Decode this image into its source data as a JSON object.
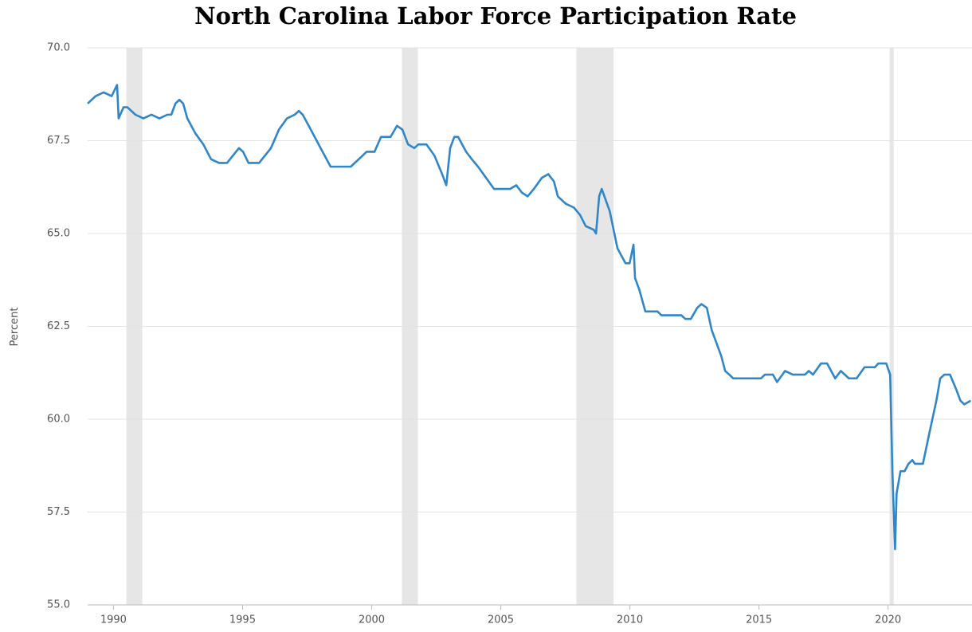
{
  "chart_data": {
    "type": "line",
    "title": "North Carolina Labor Force Participation Rate",
    "y_label": "Percent",
    "xlim": [
      1989,
      2023.25
    ],
    "ylim": [
      55,
      70
    ],
    "xticks": [
      1990,
      1995,
      2000,
      2005,
      2010,
      2015,
      2020
    ],
    "yticks": [
      {
        "value": 55,
        "label": "55.0"
      },
      {
        "value": 57.5,
        "label": "57.5"
      },
      {
        "value": 60,
        "label": "60.0"
      },
      {
        "value": 62.5,
        "label": "62.5"
      },
      {
        "value": 65,
        "label": "65.0"
      },
      {
        "value": 67.5,
        "label": "67.5"
      },
      {
        "value": 70,
        "label": "70.0"
      }
    ],
    "grid": true,
    "recessions": [
      {
        "start": 1990.5,
        "end": 1991.12
      },
      {
        "start": 2001.17,
        "end": 2001.79
      },
      {
        "start": 2007.93,
        "end": 2009.37
      },
      {
        "start": 2020.06,
        "end": 2020.22
      }
    ],
    "recession_color": "#e6e6e6",
    "series": [
      {
        "name": "North Carolina",
        "color": "#2f86c8",
        "x": [
          1989.0,
          1989.31,
          1989.62,
          1989.93,
          1990.14,
          1990.2,
          1990.39,
          1990.54,
          1990.85,
          1991.16,
          1991.47,
          1991.78,
          1992.09,
          1992.24,
          1992.4,
          1992.55,
          1992.7,
          1992.86,
          1993.17,
          1993.48,
          1993.78,
          1994.09,
          1994.4,
          1994.86,
          1995.02,
          1995.23,
          1995.64,
          1996.1,
          1996.41,
          1996.72,
          1997.02,
          1997.18,
          1997.33,
          1997.64,
          1998.1,
          1998.41,
          1999.19,
          1999.65,
          1999.8,
          2000.11,
          2000.36,
          2000.73,
          2000.98,
          2001.19,
          2001.41,
          2001.65,
          2001.81,
          2002.12,
          2002.43,
          2002.73,
          2002.89,
          2003.04,
          2003.2,
          2003.35,
          2003.66,
          2003.88,
          2004.12,
          2004.43,
          2004.74,
          2004.99,
          2005.36,
          2005.6,
          2005.82,
          2006.04,
          2006.28,
          2006.59,
          2006.84,
          2007.06,
          2007.21,
          2007.52,
          2007.83,
          2008.07,
          2008.29,
          2008.6,
          2008.69,
          2008.81,
          2008.91,
          2009.22,
          2009.37,
          2009.52,
          2009.83,
          2009.99,
          2010.14,
          2010.2,
          2010.36,
          2010.6,
          2011.07,
          2011.22,
          2011.99,
          2012.15,
          2012.36,
          2012.61,
          2012.77,
          2012.98,
          2013.17,
          2013.54,
          2013.69,
          2013.85,
          2014.0,
          2015.08,
          2015.23,
          2015.54,
          2015.7,
          2016.01,
          2016.31,
          2016.78,
          2016.93,
          2017.09,
          2017.4,
          2017.64,
          2017.95,
          2018.17,
          2018.48,
          2018.78,
          2019.09,
          2019.49,
          2019.62,
          2019.93,
          2020.08,
          2020.17,
          2020.27,
          2020.33,
          2020.48,
          2020.64,
          2020.79,
          2020.94,
          2021.04,
          2021.35,
          2021.56,
          2021.87,
          2022.02,
          2022.18,
          2022.4,
          2022.64,
          2022.8,
          2022.95,
          2023.2
        ],
        "values": [
          68.5,
          68.7,
          68.8,
          68.7,
          69.0,
          68.1,
          68.4,
          68.4,
          68.2,
          68.1,
          68.2,
          68.1,
          68.2,
          68.2,
          68.5,
          68.6,
          68.5,
          68.1,
          67.7,
          67.4,
          67.0,
          66.9,
          66.9,
          67.3,
          67.2,
          66.9,
          66.9,
          67.3,
          67.8,
          68.1,
          68.2,
          68.3,
          68.2,
          67.8,
          67.2,
          66.8,
          66.8,
          67.1,
          67.2,
          67.2,
          67.6,
          67.6,
          67.9,
          67.8,
          67.4,
          67.3,
          67.4,
          67.4,
          67.1,
          66.6,
          66.3,
          67.3,
          67.6,
          67.6,
          67.2,
          67.0,
          66.8,
          66.5,
          66.2,
          66.2,
          66.2,
          66.3,
          66.1,
          66.0,
          66.2,
          66.5,
          66.6,
          66.4,
          66.0,
          65.8,
          65.7,
          65.5,
          65.2,
          65.1,
          65.0,
          66.0,
          66.2,
          65.6,
          65.1,
          64.6,
          64.2,
          64.2,
          64.7,
          63.8,
          63.5,
          62.9,
          62.9,
          62.8,
          62.8,
          62.7,
          62.7,
          63.0,
          63.1,
          63.0,
          62.4,
          61.7,
          61.3,
          61.2,
          61.1,
          61.1,
          61.2,
          61.2,
          61.0,
          61.3,
          61.2,
          61.2,
          61.3,
          61.2,
          61.5,
          61.5,
          61.1,
          61.3,
          61.1,
          61.1,
          61.4,
          61.4,
          61.5,
          61.5,
          61.2,
          58.5,
          56.5,
          58.0,
          58.6,
          58.6,
          58.8,
          58.9,
          58.8,
          58.8,
          59.5,
          60.5,
          61.1,
          61.2,
          61.2,
          60.8,
          60.5,
          60.4,
          60.5
        ]
      }
    ]
  }
}
